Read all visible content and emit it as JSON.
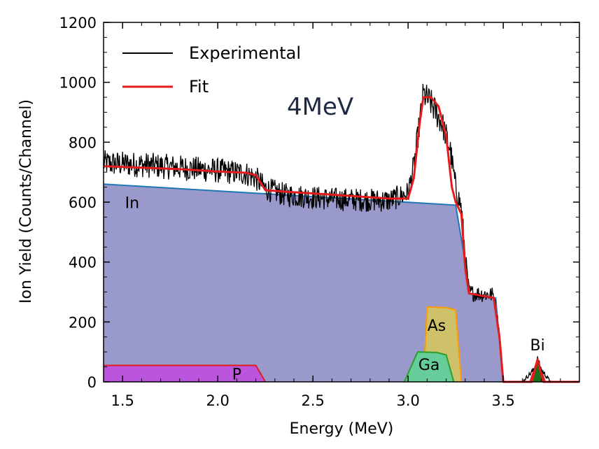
{
  "chart_data": {
    "type": "area",
    "xlabel": "Energy (MeV)",
    "ylabel": "Ion Yield (Counts/Channel)",
    "xlim": [
      1.4,
      3.9
    ],
    "ylim": [
      0,
      1200
    ],
    "xticks": [
      "1.5",
      "2.0",
      "2.5",
      "3.0",
      "3.5"
    ],
    "xtick_values": [
      1.5,
      2.0,
      2.5,
      3.0,
      3.5
    ],
    "yticks": [
      "0",
      "200",
      "400",
      "600",
      "800",
      "1000",
      "1200"
    ],
    "ytick_values": [
      0,
      200,
      400,
      600,
      800,
      1000,
      1200
    ],
    "grid": false,
    "legend_position": "top-left",
    "beam_label": "4MeV",
    "series": [
      {
        "name": "Experimental",
        "color": "#000000",
        "kind": "noisy-line",
        "x": [
          1.4,
          1.6,
          1.8,
          2.0,
          2.15,
          2.2,
          2.25,
          2.35,
          2.6,
          2.9,
          3.0,
          3.03,
          3.06,
          3.08,
          3.12,
          3.18,
          3.22,
          3.25,
          3.28,
          3.3,
          3.32,
          3.35,
          3.45,
          3.48,
          3.5,
          3.6,
          3.66,
          3.68,
          3.7,
          3.75,
          3.9
        ],
        "y": [
          730,
          725,
          715,
          705,
          695,
          680,
          645,
          625,
          610,
          605,
          630,
          720,
          860,
          960,
          930,
          860,
          780,
          650,
          580,
          420,
          300,
          295,
          290,
          160,
          0,
          0,
          40,
          75,
          40,
          0,
          0
        ]
      },
      {
        "name": "Fit",
        "color": "#e41a1c",
        "kind": "line",
        "x": [
          1.4,
          1.6,
          1.8,
          2.0,
          2.15,
          2.2,
          2.25,
          2.35,
          2.6,
          2.9,
          3.0,
          3.03,
          3.06,
          3.08,
          3.12,
          3.16,
          3.2,
          3.23,
          3.25,
          3.28,
          3.3,
          3.32,
          3.35,
          3.45,
          3.48,
          3.5,
          3.6,
          3.65,
          3.68,
          3.71,
          3.75,
          3.9
        ],
        "y": [
          720,
          715,
          710,
          702,
          698,
          690,
          640,
          635,
          625,
          612,
          612,
          680,
          860,
          950,
          950,
          920,
          820,
          650,
          600,
          560,
          380,
          295,
          292,
          280,
          150,
          0,
          0,
          0,
          75,
          0,
          0,
          0
        ]
      }
    ],
    "components": [
      {
        "label": "In",
        "fill": "#9999cc",
        "edge": "#1f77b4",
        "x": [
          1.4,
          3.25,
          3.3,
          3.32,
          3.46,
          3.5
        ],
        "y": [
          660,
          590,
          400,
          295,
          280,
          0
        ]
      },
      {
        "label": "P",
        "fill": "#bb55dd",
        "edge": "#e41a1c",
        "x": [
          1.4,
          2.2,
          2.25
        ],
        "y": [
          55,
          55,
          0
        ]
      },
      {
        "label": "As",
        "fill": "#cfc06a",
        "edge": "#ff9900",
        "x": [
          3.08,
          3.1,
          3.2,
          3.25,
          3.28
        ],
        "y": [
          0,
          250,
          248,
          240,
          0
        ]
      },
      {
        "label": "Ga",
        "fill": "#66cc99",
        "edge": "#2aa02a",
        "x": [
          2.98,
          3.05,
          3.15,
          3.2,
          3.24
        ],
        "y": [
          0,
          100,
          98,
          90,
          0
        ]
      },
      {
        "label": "Bi",
        "fill": "#1a6e1a",
        "edge": "#e41a1c",
        "x": [
          3.64,
          3.68,
          3.72
        ],
        "y": [
          0,
          75,
          0
        ]
      }
    ]
  }
}
